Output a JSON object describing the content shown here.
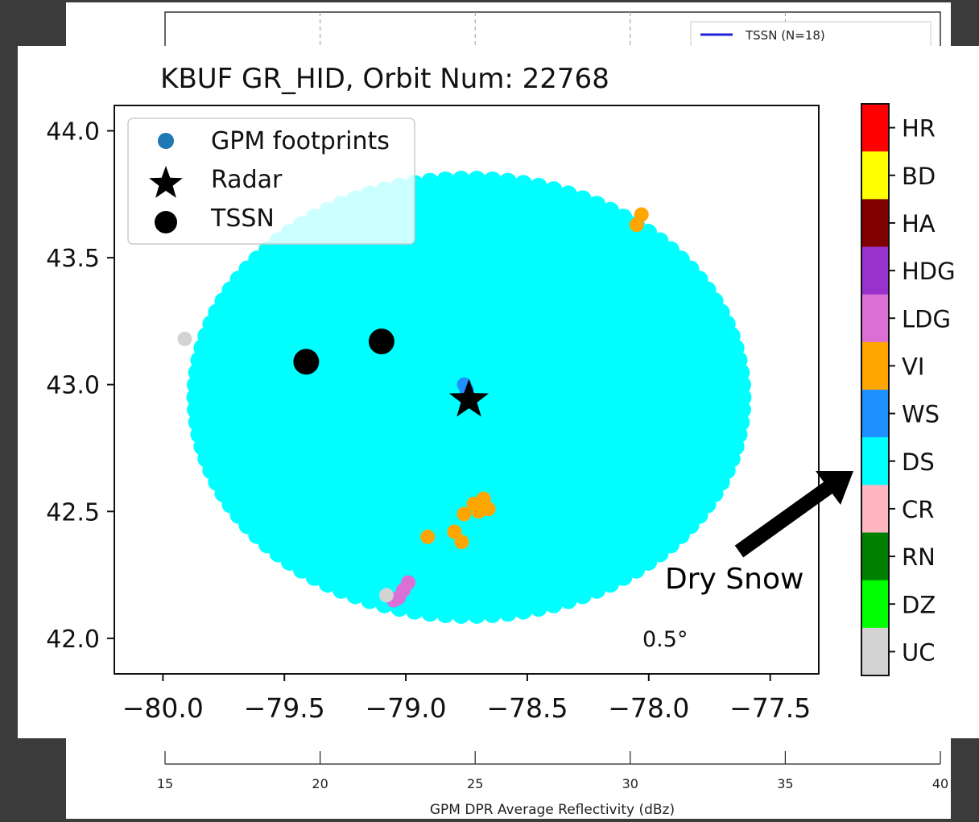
{
  "background_chart": {
    "legend_label": "TSSN (N=18)",
    "legend_color": "#1f1fd6",
    "x_axis": {
      "label": "GPM DPR Average Reflectivity (dBz)",
      "range": [
        15,
        40
      ],
      "ticks": [
        15,
        20,
        25,
        30,
        35,
        40
      ]
    }
  },
  "chart_data": {
    "type": "scatter",
    "title": "KBUF GR_HID, Orbit Num: 22768",
    "xlabel": "",
    "ylabel": "",
    "xlim": [
      -80.2,
      -77.3
    ],
    "ylim": [
      41.86,
      44.1
    ],
    "xticks": [
      "−80.0",
      "−79.5",
      "−79.0",
      "−78.5",
      "−78.0",
      "−77.5"
    ],
    "xtick_values": [
      -80.0,
      -79.5,
      -79.0,
      -78.5,
      -78.0,
      -77.5
    ],
    "yticks": [
      "44.0",
      "43.5",
      "43.0",
      "42.5",
      "42.0"
    ],
    "ytick_values": [
      44.0,
      43.5,
      43.0,
      42.5,
      42.0
    ],
    "footprint_region": {
      "center": [
        -78.74,
        42.95
      ],
      "semi_axes_deg": [
        1.16,
        0.89
      ],
      "color": "#00ffff"
    },
    "series": [
      {
        "name": "GPM footprints",
        "class": "VI",
        "color": "#ffa500",
        "points": [
          [
            -78.03,
            43.67
          ],
          [
            -78.05,
            43.63
          ],
          [
            -78.76,
            42.49
          ],
          [
            -78.72,
            42.53
          ],
          [
            -78.68,
            42.55
          ],
          [
            -78.66,
            42.51
          ],
          [
            -78.7,
            42.5
          ],
          [
            -78.8,
            42.42
          ],
          [
            -78.77,
            42.38
          ],
          [
            -78.91,
            42.4
          ]
        ]
      },
      {
        "name": "GPM footprints",
        "class": "LDG",
        "color": "#da70d6",
        "points": [
          [
            -78.99,
            42.22
          ],
          [
            -79.01,
            42.19
          ],
          [
            -79.03,
            42.16
          ],
          [
            -79.05,
            42.15
          ]
        ]
      },
      {
        "name": "GPM footprints",
        "class": "UC",
        "color": "#d3d3d3",
        "points": [
          [
            -79.91,
            43.18
          ],
          [
            -79.08,
            42.17
          ]
        ]
      },
      {
        "name": "GPM footprints",
        "class": "WS",
        "color": "#1e90ff",
        "points": [
          [
            -78.75,
            42.98
          ],
          [
            -78.76,
            43.0
          ]
        ]
      }
    ],
    "radar": {
      "name": "Radar",
      "lon": -78.74,
      "lat": 42.94
    },
    "tssn": {
      "name": "TSSN",
      "points": [
        [
          -79.41,
          43.09
        ],
        [
          -79.1,
          43.17
        ]
      ]
    },
    "legend": {
      "position": "upper left",
      "entries": [
        "GPM footprints",
        "Radar",
        "TSSN"
      ],
      "gpm_marker_color": "#1f77b4"
    },
    "annotation": "0.5°",
    "colorbar": {
      "labels": [
        "HR",
        "BD",
        "HA",
        "HDG",
        "LDG",
        "VI",
        "WS",
        "DS",
        "CR",
        "RN",
        "DZ",
        "UC"
      ],
      "colors": [
        "#ff0000",
        "#ffff00",
        "#800000",
        "#9932cc",
        "#da70d6",
        "#ffa500",
        "#1e90ff",
        "#00ffff",
        "#ffb6c1",
        "#008000",
        "#00ff00",
        "#d3d3d3"
      ]
    },
    "callout": {
      "label": "Dry Snow",
      "points_to": "DS"
    }
  }
}
